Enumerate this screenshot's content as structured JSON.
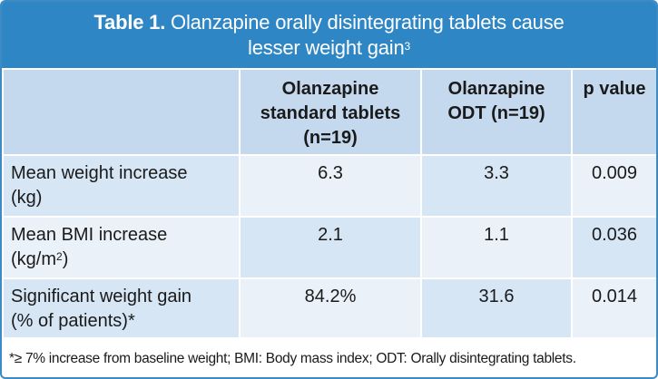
{
  "title": {
    "prefix": "Table 1.",
    "line1": "Olanzapine orally disintegrating tablets cause",
    "line2": "lesser weight gain",
    "ref": "3"
  },
  "columns": {
    "standard": {
      "line1": "Olanzapine",
      "line2": "standard tablets",
      "line3": "(n=19)"
    },
    "odt": {
      "line1": "Olanzapine",
      "line2": "ODT (n=19)"
    },
    "p": "p value"
  },
  "rows": [
    {
      "label1": "Mean weight increase",
      "label2": "(kg)",
      "standard": "6.3",
      "odt": "3.3",
      "p": "0.009"
    },
    {
      "label1": "Mean BMI increase",
      "label2a": "(kg/m",
      "label2sup": "2",
      "label2b": ")",
      "standard": "2.1",
      "odt": "1.1",
      "p": "0.036"
    },
    {
      "label1": "Significant weight gain",
      "label2": "(% of patients)*",
      "standard": "84.2%",
      "odt": "31.6",
      "p": "0.014"
    }
  ],
  "footnote": "*≥ 7% increase from baseline weight; BMI: Body mass index; ODT: Orally disintegrating tablets."
}
